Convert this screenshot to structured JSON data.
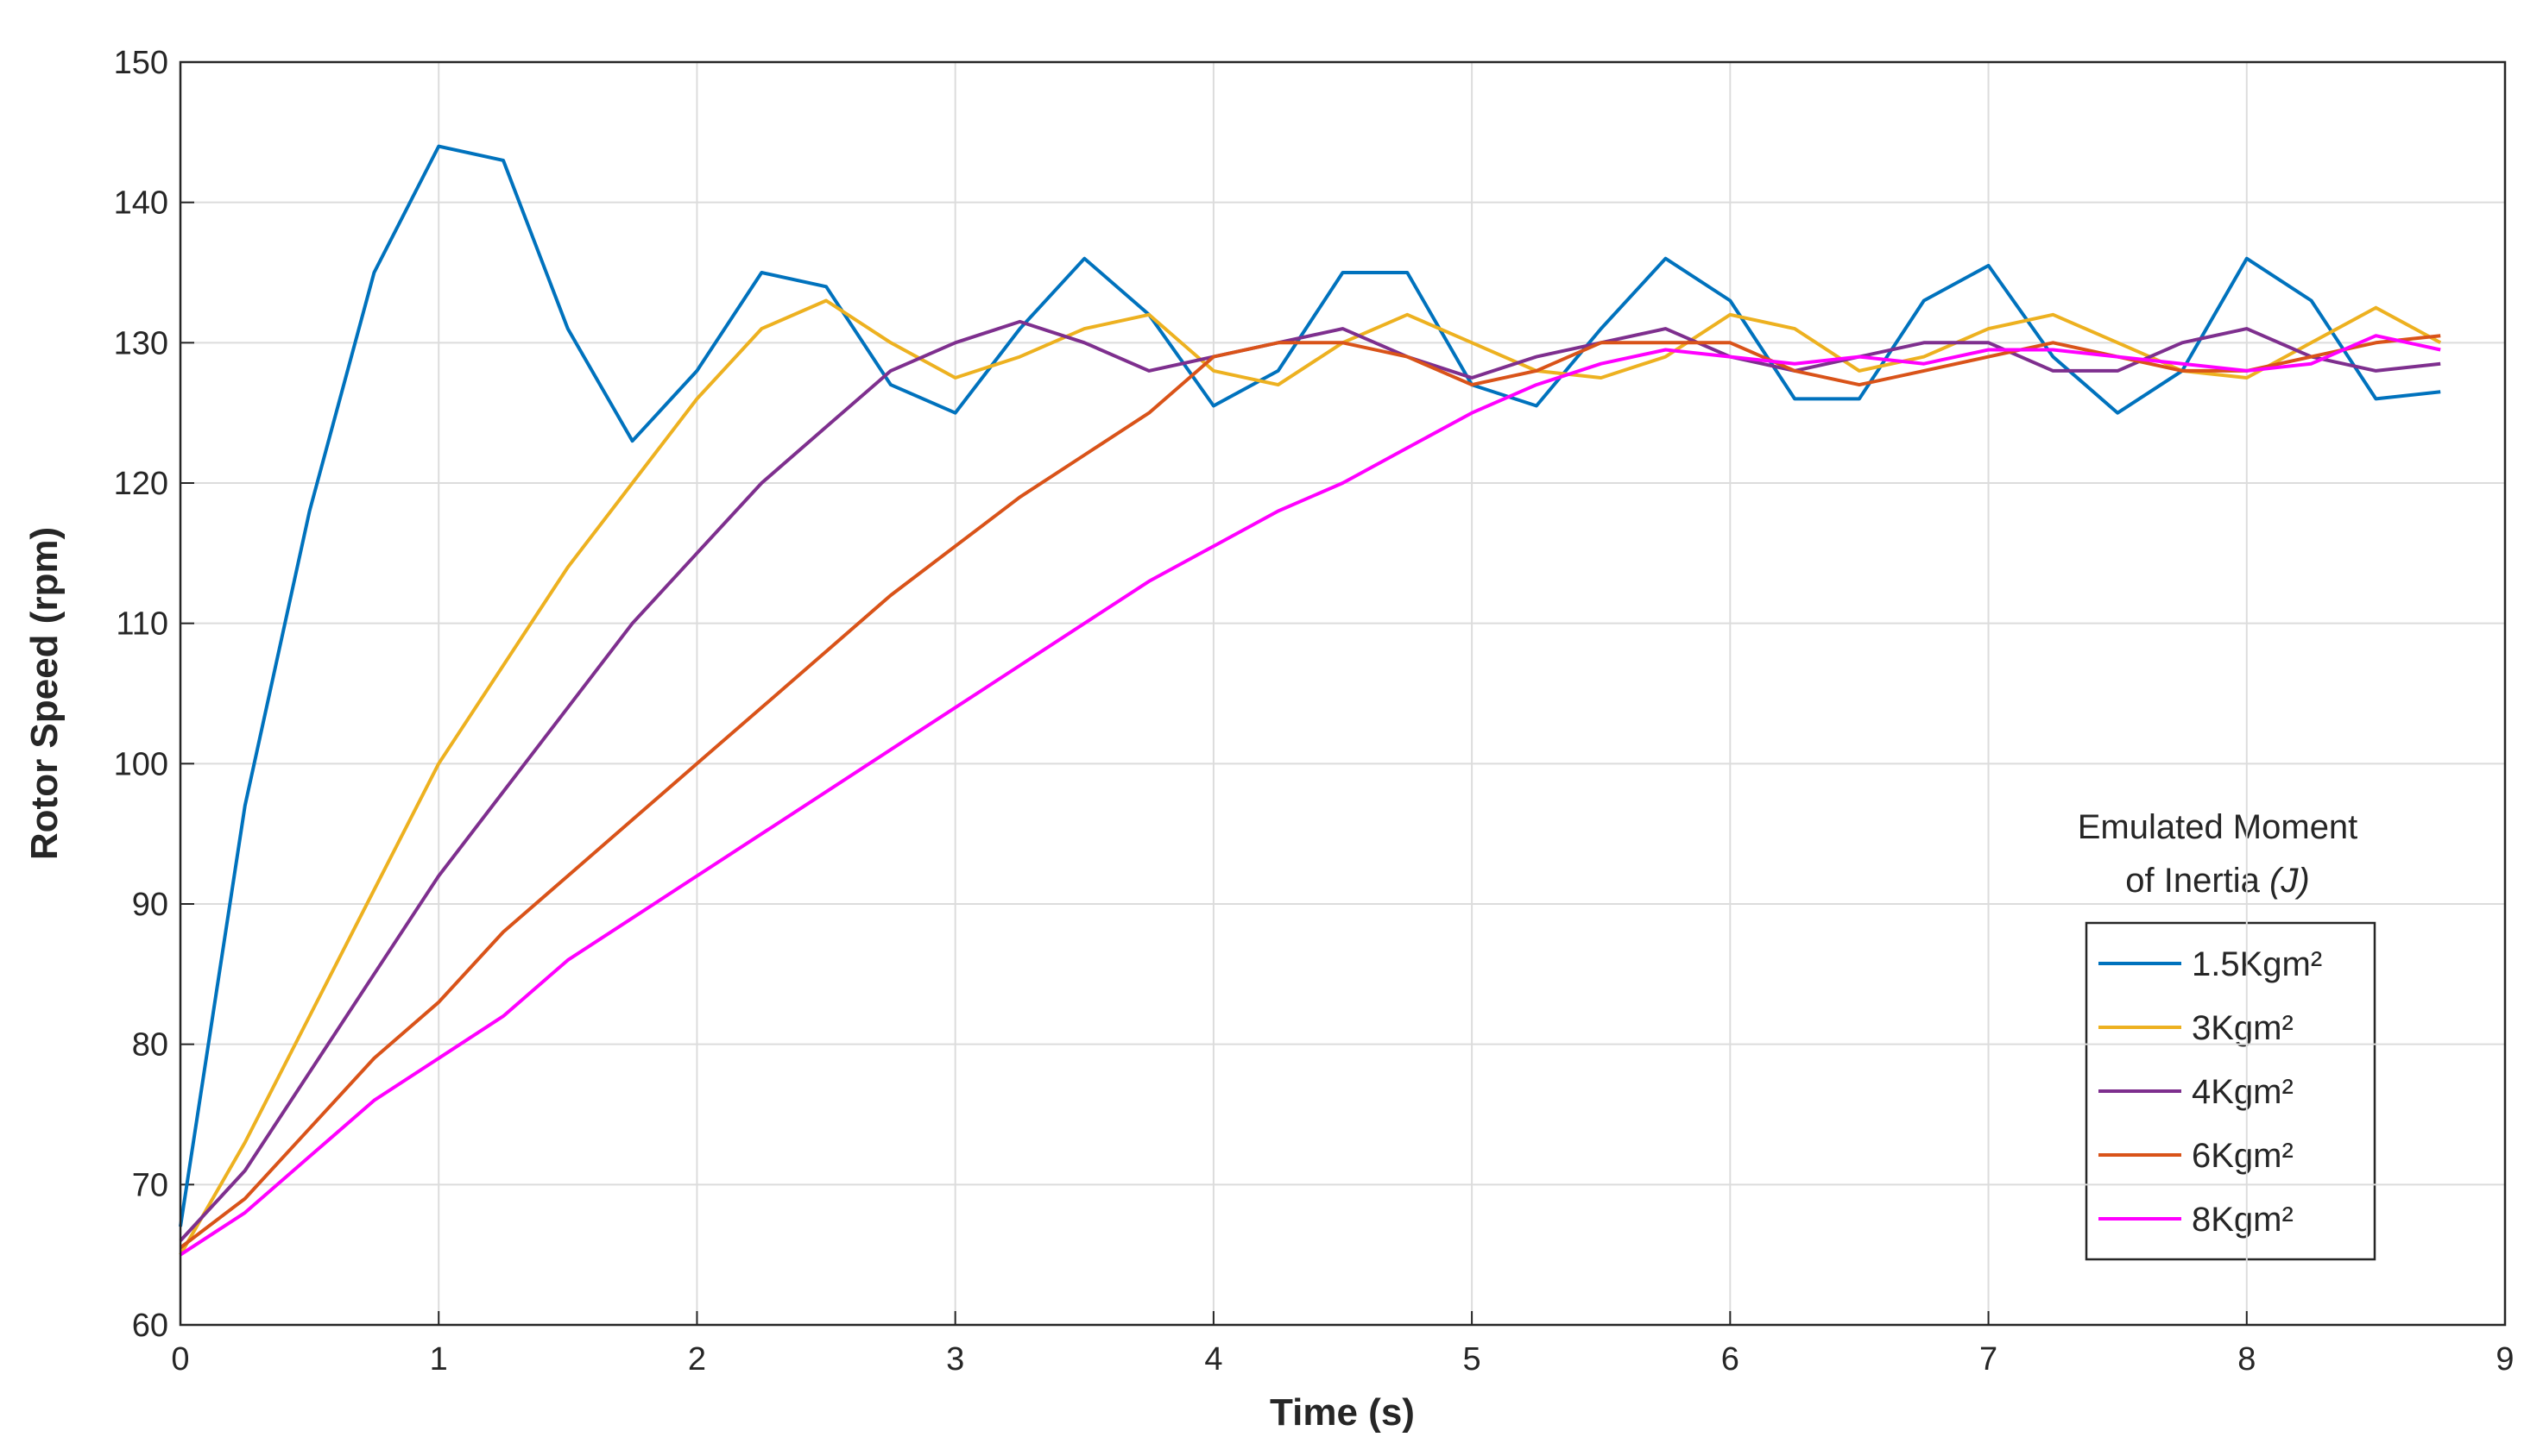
{
  "chart_data": {
    "type": "line",
    "xlabel": "Time (s)",
    "ylabel": "Rotor Speed (rpm)",
    "legend_title": {
      "line1": "Emulated Moment",
      "line2": "of Inertia",
      "symbol": "(J)"
    },
    "legend_position": "lower right",
    "grid": true,
    "xlim": [
      0,
      9
    ],
    "ylim": [
      60,
      150
    ],
    "xticks": [
      0,
      1,
      2,
      3,
      4,
      5,
      6,
      7,
      8,
      9
    ],
    "yticks": [
      60,
      70,
      80,
      90,
      100,
      110,
      120,
      130,
      140,
      150
    ],
    "x": [
      0,
      0.25,
      0.5,
      0.75,
      1,
      1.25,
      1.5,
      1.75,
      2,
      2.25,
      2.5,
      2.75,
      3,
      3.25,
      3.5,
      3.75,
      4,
      4.25,
      4.5,
      4.75,
      5,
      5.25,
      5.5,
      5.75,
      6,
      6.25,
      6.5,
      6.75,
      7,
      7.25,
      7.5,
      7.75,
      8,
      8.25,
      8.5,
      8.75
    ],
    "series": [
      {
        "name": "1.5Kgm²",
        "color": "#0072BD",
        "values": [
          67,
          97,
          118,
          135,
          144,
          143,
          131,
          123,
          128,
          135,
          134,
          127,
          125,
          131,
          136,
          132,
          125.5,
          128,
          135,
          135,
          127,
          125.5,
          131,
          136,
          133,
          126,
          126,
          133,
          135.5,
          129,
          125,
          128,
          136,
          133,
          126,
          126.5
        ]
      },
      {
        "name": "3Kgm²",
        "color": "#EDB120",
        "values": [
          65,
          73,
          82,
          91,
          100,
          107,
          114,
          120,
          126,
          131,
          133,
          130,
          127.5,
          129,
          131,
          132,
          128,
          127,
          130,
          132,
          130,
          128,
          127.5,
          129,
          132,
          131,
          128,
          129,
          131,
          132,
          130,
          128,
          127.5,
          130,
          132.5,
          130
        ]
      },
      {
        "name": "4Kgm²",
        "color": "#7E2F8E",
        "values": [
          66,
          71,
          78,
          85,
          92,
          98,
          104,
          110,
          115,
          120,
          124,
          128,
          130,
          131.5,
          130,
          128,
          129,
          130,
          131,
          129,
          127.5,
          129,
          130,
          131,
          129,
          128,
          129,
          130,
          130,
          128,
          128,
          130,
          131,
          129,
          128,
          128.5
        ]
      },
      {
        "name": "6Kgm²",
        "color": "#D95319",
        "values": [
          65.5,
          69,
          74,
          79,
          83,
          88,
          92,
          96,
          100,
          104,
          108,
          112,
          115.5,
          119,
          122,
          125,
          129,
          130,
          130,
          129,
          127,
          128,
          130,
          130,
          130,
          128,
          127,
          128,
          129,
          130,
          129,
          128,
          128,
          129,
          130,
          130.5
        ]
      },
      {
        "name": "8Kgm²",
        "color": "#FF00FF",
        "values": [
          65,
          68,
          72,
          76,
          79,
          82,
          86,
          89,
          92,
          95,
          98,
          101,
          104,
          107,
          110,
          113,
          115.5,
          118,
          120,
          122.5,
          125,
          127,
          128.5,
          129.5,
          129,
          128.5,
          129,
          128.5,
          129.5,
          129.5,
          129,
          128.5,
          128,
          128.5,
          130.5,
          129.5
        ]
      }
    ]
  }
}
